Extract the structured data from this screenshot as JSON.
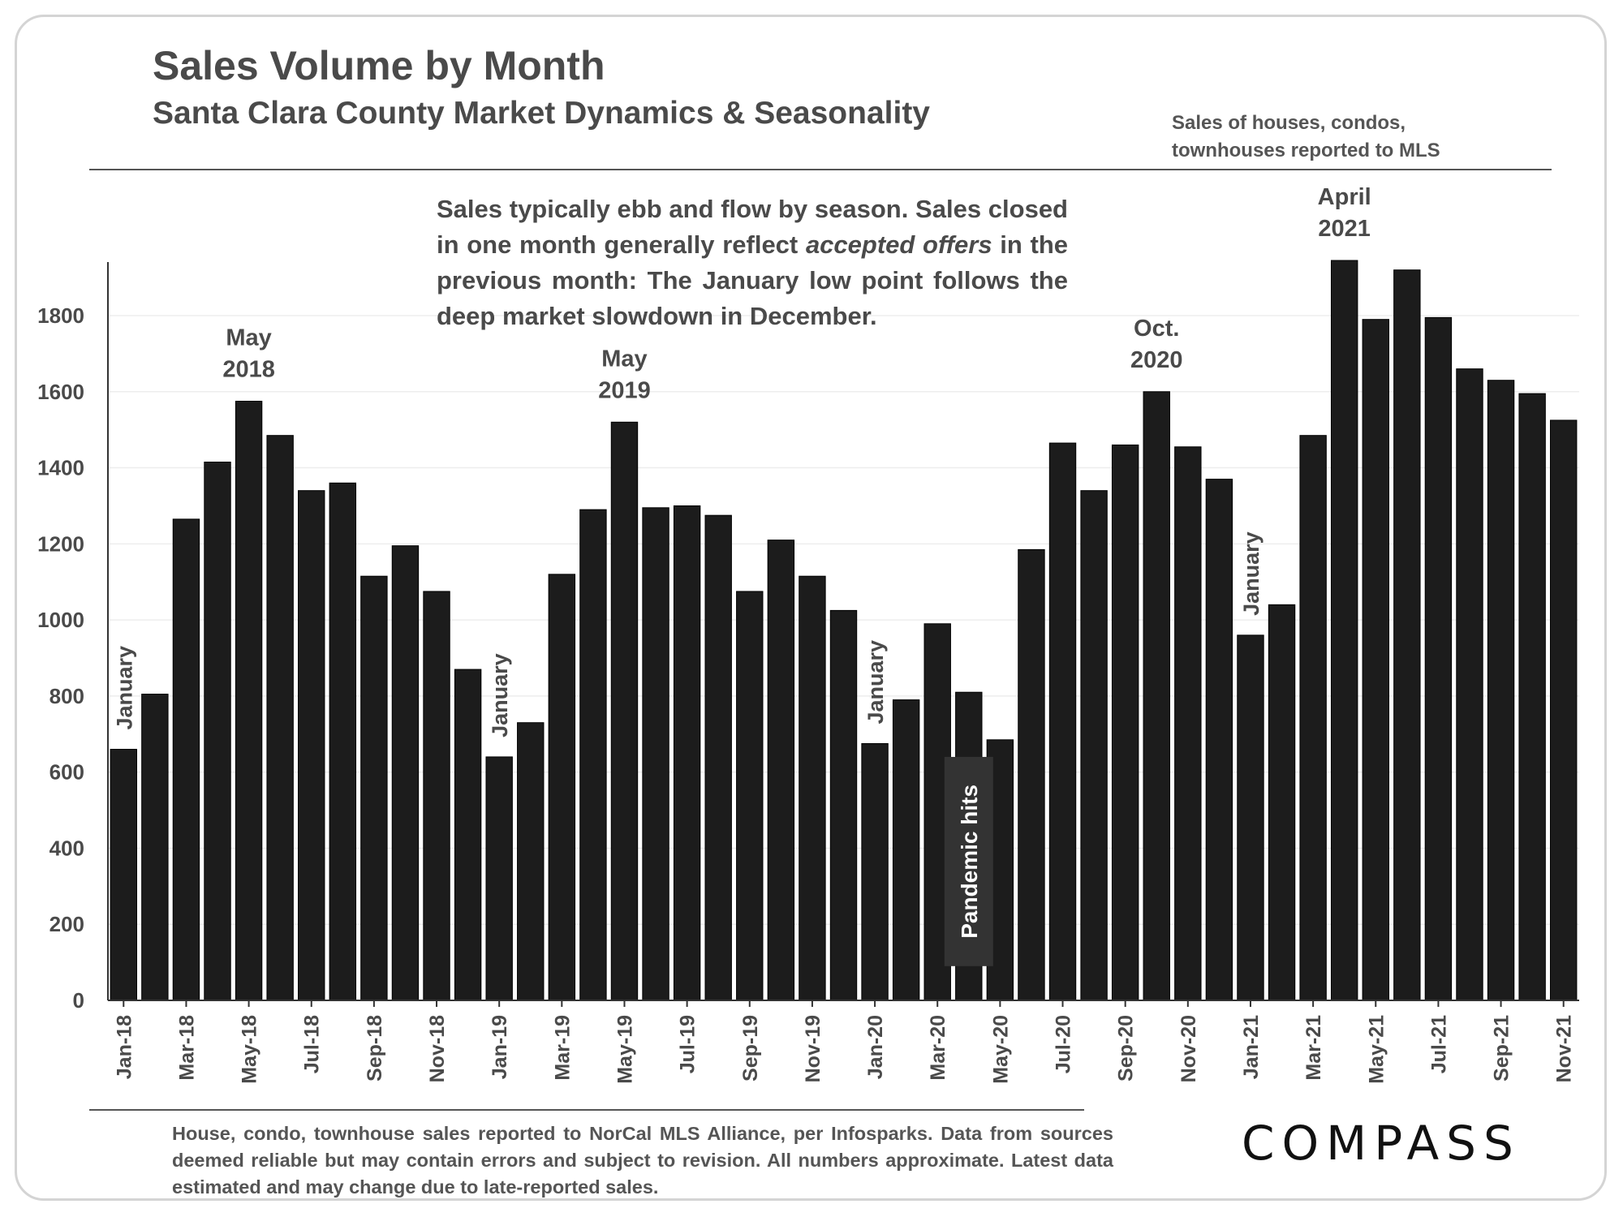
{
  "header": {
    "title": "Sales Volume by Month",
    "subtitle": "Santa Clara County Market Dynamics & Seasonality",
    "note_line1": "Sales of houses, condos,",
    "note_line2": "townhouses  reported to MLS"
  },
  "annotation": {
    "part1": "Sales typically ebb and flow by season. Sales closed in one month generally reflect ",
    "emphasis": "accepted offers",
    "part2": " in the previous month: The January low point follows the deep market slowdown in December."
  },
  "footer": {
    "source": "House, condo, townhouse sales reported to NorCal MLS Alliance, per Infosparks. Data from sources deemed reliable but may contain errors and subject to revision. All numbers approximate. Latest data estimated and may change due to late-reported sales.",
    "logo": "COMPASS"
  },
  "colors": {
    "bar": "#1c1c1c",
    "text": "#4a4a4a",
    "pandemic_box": "#333333"
  },
  "chart_data": {
    "type": "bar",
    "title": "Sales Volume by Month",
    "subtitle": "Santa Clara County Market Dynamics & Seasonality",
    "ylim": [
      0,
      1950
    ],
    "yticks": [
      0,
      200,
      400,
      600,
      800,
      1000,
      1200,
      1400,
      1600,
      1800
    ],
    "grid": true,
    "categories": [
      "Jan-18",
      "Feb-18",
      "Mar-18",
      "Apr-18",
      "May-18",
      "Jun-18",
      "Jul-18",
      "Aug-18",
      "Sep-18",
      "Oct-18",
      "Nov-18",
      "Dec-18",
      "Jan-19",
      "Feb-19",
      "Mar-19",
      "Apr-19",
      "May-19",
      "Jun-19",
      "Jul-19",
      "Aug-19",
      "Sep-19",
      "Oct-19",
      "Nov-19",
      "Dec-19",
      "Jan-20",
      "Feb-20",
      "Mar-20",
      "Apr-20",
      "May-20",
      "Jun-20",
      "Jul-20",
      "Aug-20",
      "Sep-20",
      "Oct-20",
      "Nov-20",
      "Dec-20",
      "Jan-21",
      "Feb-21",
      "Mar-21",
      "Apr-21",
      "May-21",
      "Jun-21",
      "Jul-21",
      "Aug-21",
      "Sep-21",
      "Oct-21",
      "Nov-21"
    ],
    "xtick_labels": [
      "Jan-18",
      "Mar-18",
      "May-18",
      "Jul-18",
      "Sep-18",
      "Nov-18",
      "Jan-19",
      "Mar-19",
      "May-19",
      "Jul-19",
      "Sep-19",
      "Nov-19",
      "Jan-20",
      "Mar-20",
      "May-20",
      "Jul-20",
      "Sep-20",
      "Nov-20",
      "Jan-21",
      "Mar-21",
      "May-21",
      "Jul-21",
      "Sep-21",
      "Nov-21"
    ],
    "values": [
      660,
      805,
      1265,
      1415,
      1575,
      1485,
      1340,
      1360,
      1115,
      1195,
      1075,
      870,
      640,
      730,
      1120,
      1290,
      1520,
      1295,
      1300,
      1275,
      1075,
      1210,
      1115,
      1025,
      675,
      790,
      990,
      810,
      685,
      1185,
      1465,
      1340,
      1460,
      1600,
      1455,
      1370,
      960,
      1040,
      1485,
      1945,
      1790,
      1920,
      1795,
      1660,
      1630,
      1595,
      1525
    ],
    "annotations": [
      {
        "category": "Jan-18",
        "lines": [
          "January"
        ],
        "style": "vertical"
      },
      {
        "category": "May-18",
        "lines": [
          "May",
          "2018"
        ],
        "style": "horizontal"
      },
      {
        "category": "Jan-19",
        "lines": [
          "January"
        ],
        "style": "vertical"
      },
      {
        "category": "May-19",
        "lines": [
          "May",
          "2019"
        ],
        "style": "horizontal"
      },
      {
        "category": "Jan-20",
        "lines": [
          "January"
        ],
        "style": "vertical"
      },
      {
        "category": "Apr-20",
        "lines": [
          "Pandemic hits"
        ],
        "style": "boxed-vertical"
      },
      {
        "category": "Oct-20",
        "lines": [
          "Oct.",
          "2020"
        ],
        "style": "horizontal"
      },
      {
        "category": "Jan-21",
        "lines": [
          "January"
        ],
        "style": "vertical"
      },
      {
        "category": "Apr-21",
        "lines": [
          "April",
          "2021"
        ],
        "style": "horizontal"
      }
    ]
  }
}
